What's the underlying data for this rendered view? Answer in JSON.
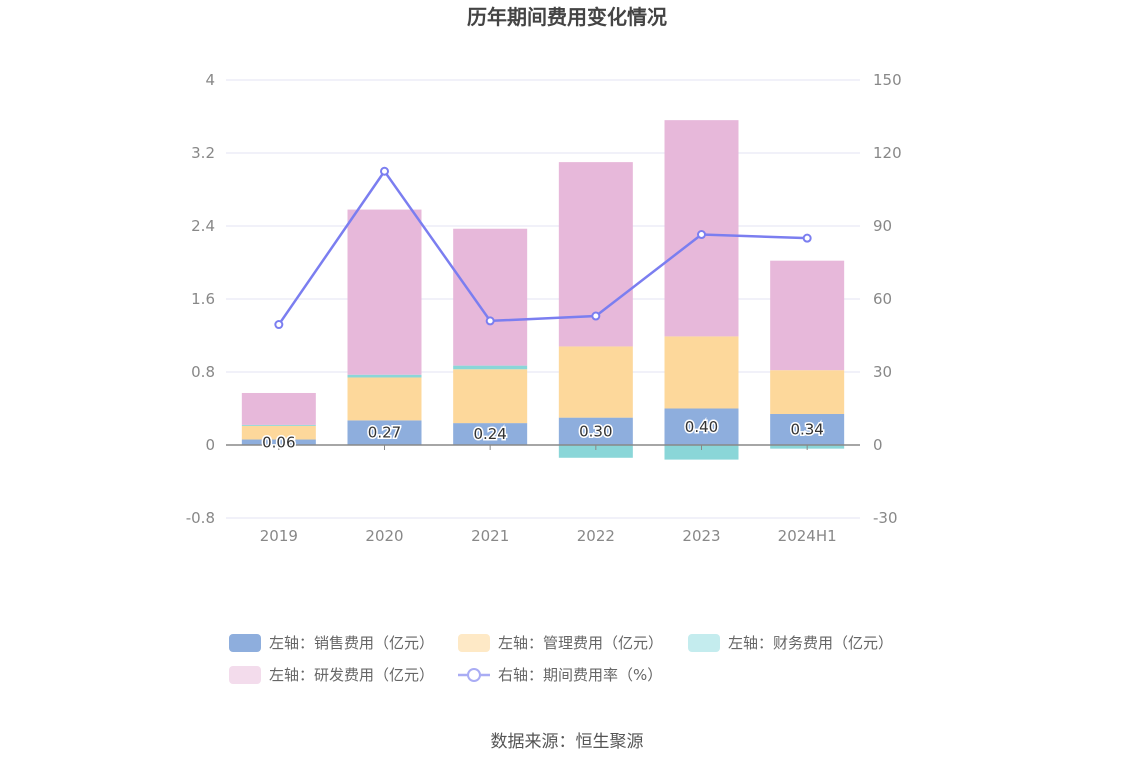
{
  "chart_data": {
    "type": "bar",
    "title": "历年期间费用变化情况",
    "categories": [
      "2019",
      "2020",
      "2021",
      "2022",
      "2023",
      "2024H1"
    ],
    "left_axis": {
      "min": -0.8,
      "max": 4,
      "ticks": [
        "4",
        "3.2",
        "2.4",
        "1.6",
        "0.8",
        "0",
        "-0.8"
      ]
    },
    "right_axis": {
      "min": -30,
      "max": 150,
      "ticks": [
        "150",
        "120",
        "90",
        "60",
        "30",
        "0",
        "-30"
      ]
    },
    "series": [
      {
        "name": "左轴：销售费用（亿元）",
        "color": "#8eaedd",
        "axis": "left",
        "stack": true,
        "values": [
          0.06,
          0.27,
          0.24,
          0.3,
          0.4,
          0.34
        ],
        "labels": [
          "0.06",
          "0.27",
          "0.24",
          "0.30",
          "0.40",
          "0.34"
        ]
      },
      {
        "name": "左轴：管理费用（亿元）",
        "color": "#fdd89b",
        "axis": "left",
        "stack": true,
        "values": [
          0.15,
          0.47,
          0.59,
          0.78,
          0.79,
          0.48
        ]
      },
      {
        "name": "左轴：财务费用（亿元）",
        "color": "#8ad6d8",
        "axis": "left",
        "stack": true,
        "values": [
          0.01,
          0.03,
          0.04,
          -0.14,
          -0.16,
          -0.04
        ]
      },
      {
        "name": "左轴：研发费用（亿元）",
        "color": "#e7b8da",
        "axis": "left",
        "stack": true,
        "values": [
          0.35,
          1.81,
          1.5,
          2.02,
          2.37,
          1.2
        ]
      },
      {
        "name": "右轴：期间费用率（%）",
        "color": "#7b7ef0",
        "axis": "right",
        "type": "line",
        "values": [
          49.5,
          112.5,
          51.0,
          53.0,
          86.5,
          85.0
        ]
      }
    ],
    "source": "数据来源：恒生聚源"
  }
}
